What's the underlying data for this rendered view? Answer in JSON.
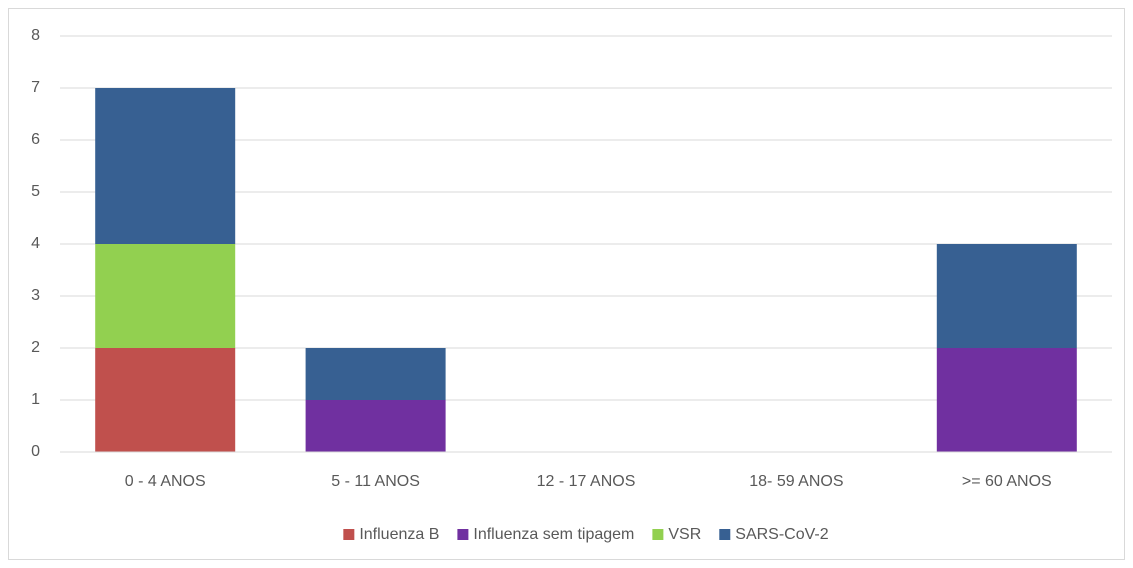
{
  "chart_data": {
    "type": "stacked_bar",
    "categories": [
      "0 - 4 ANOS",
      "5 - 11 ANOS",
      "12 - 17 ANOS",
      "18- 59 ANOS",
      ">= 60 ANOS"
    ],
    "series": [
      {
        "name": "Influenza B",
        "color": "#c0504d",
        "values": [
          2,
          0,
          0,
          0,
          0
        ]
      },
      {
        "name": "Influenza sem tipagem",
        "color": "#7030a0",
        "values": [
          0,
          1,
          0,
          0,
          2
        ]
      },
      {
        "name": "VSR",
        "color": "#92d050",
        "values": [
          2,
          0,
          0,
          0,
          0
        ]
      },
      {
        "name": "SARS-CoV-2",
        "color": "#376092",
        "values": [
          3,
          1,
          0,
          0,
          2
        ]
      }
    ],
    "ylim": [
      0,
      8
    ],
    "yticks": [
      0,
      1,
      2,
      3,
      4,
      5,
      6,
      7,
      8
    ],
    "grid": true,
    "legend": "bottom"
  }
}
